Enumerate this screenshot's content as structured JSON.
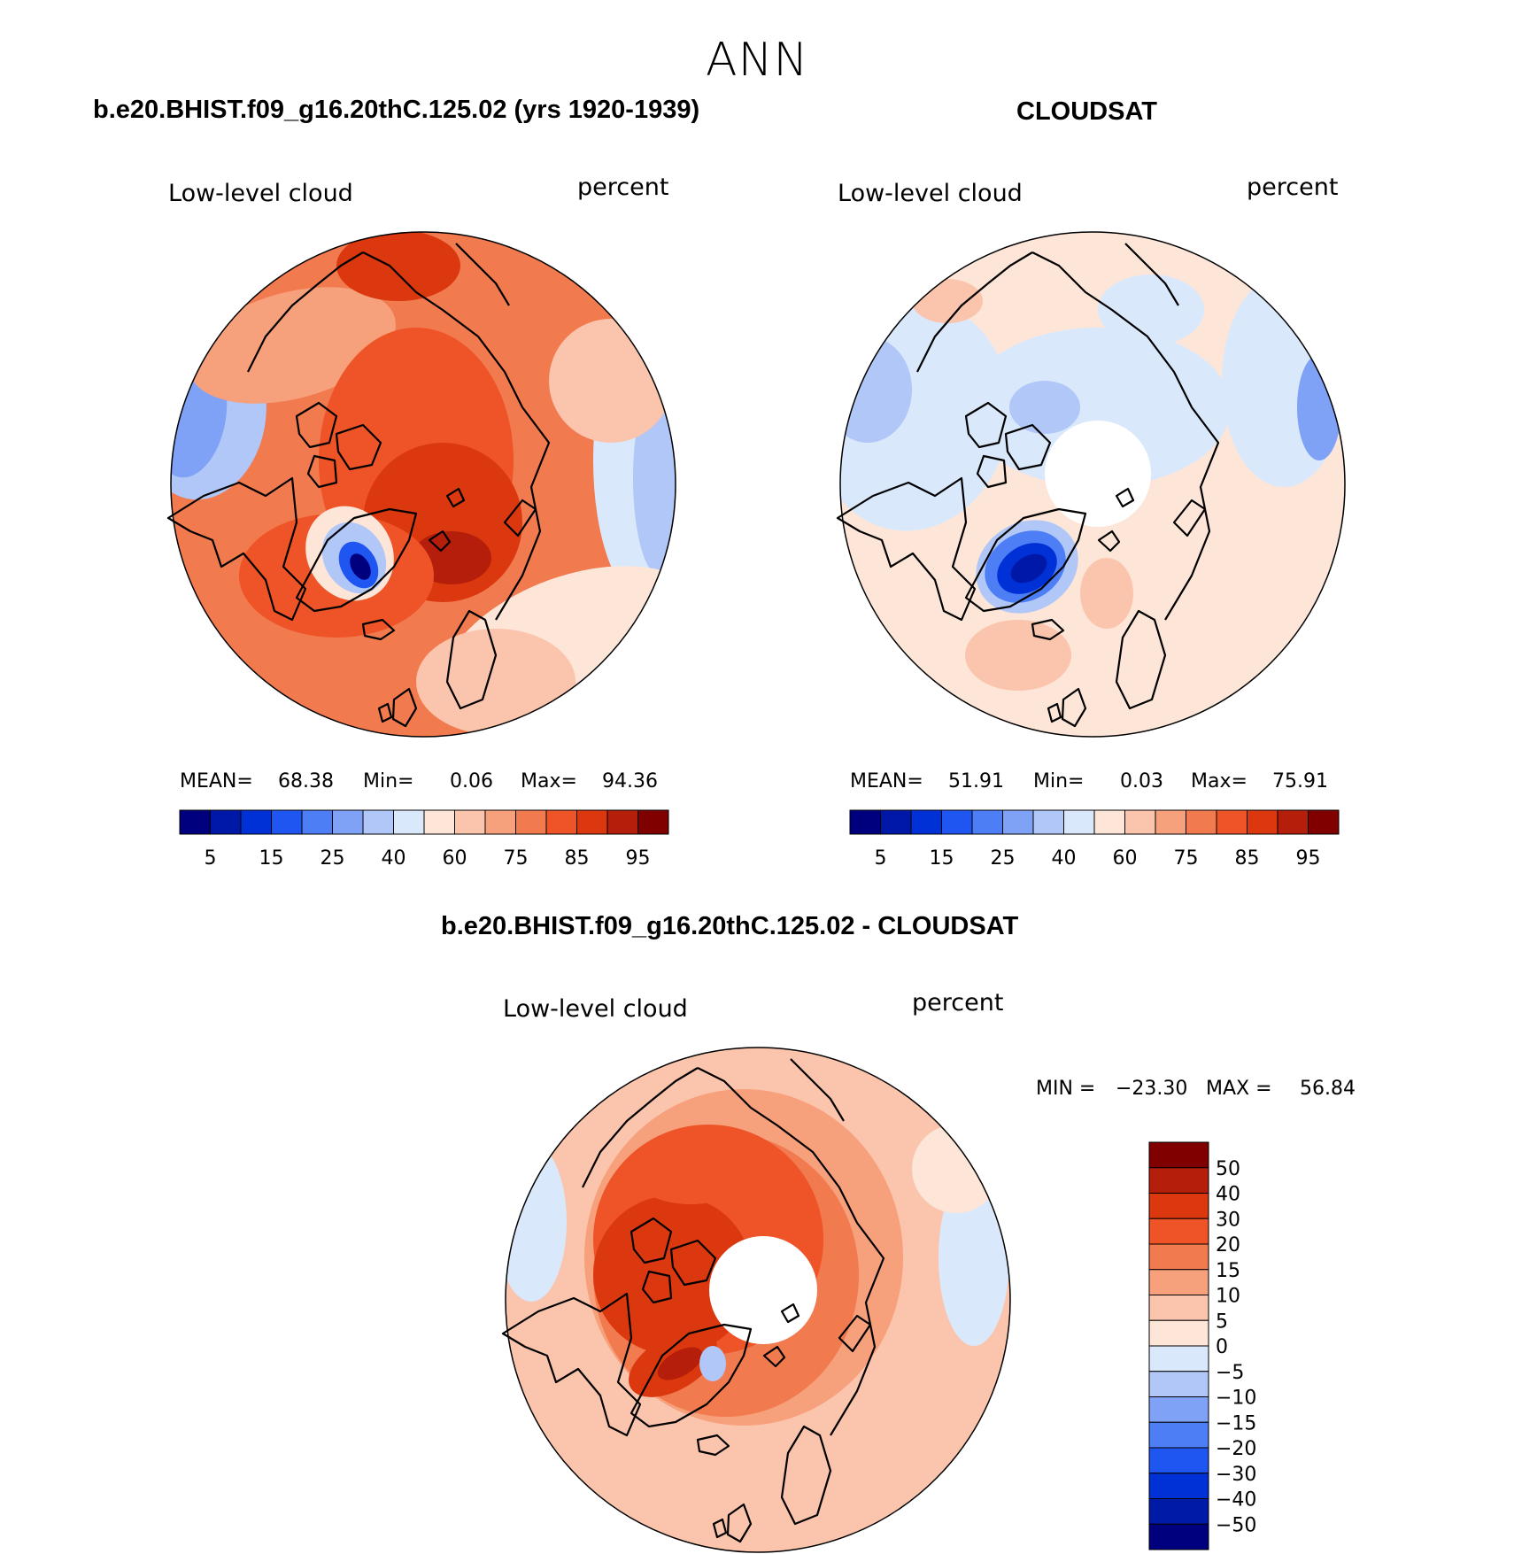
{
  "header": {
    "title": "ANN"
  },
  "colors": {
    "abs_scale": [
      "#00007f",
      "#0018a8",
      "#0031d6",
      "#1f55f0",
      "#4d7ef5",
      "#7fa2f7",
      "#b0c7f7",
      "#dae8fb",
      "#fde6d8",
      "#fbc4ac",
      "#f7a07c",
      "#f27a4f",
      "#ee5427",
      "#dc380f",
      "#b51e0a",
      "#800000"
    ],
    "diff_scale": [
      "#00007f",
      "#001aa8",
      "#0031d6",
      "#1f55f0",
      "#4d7ef5",
      "#7fa2f7",
      "#b0c7f7",
      "#dae8fb",
      "#fde6d8",
      "#fbc4ac",
      "#f7a07c",
      "#f27a4f",
      "#ee5427",
      "#dc380f",
      "#b51e0a",
      "#800000"
    ],
    "coast": "#000000"
  },
  "chart_data": [
    {
      "type": "heatmap",
      "projection": "north-polar-stereographic",
      "panel_title": "b.e20.BHIST.f09_g16.20thC.125.02 (yrs 1920-1939)",
      "variable": "Low-level cloud",
      "units": "percent",
      "stats": {
        "mean_label": "MEAN=",
        "mean": "68.38",
        "min_label": "Min=",
        "min": "0.06",
        "max_label": "Max=",
        "max": "94.36"
      },
      "colorbar": {
        "orientation": "horizontal",
        "tick_labels": [
          "5",
          "15",
          "25",
          "40",
          "60",
          "75",
          "85",
          "95"
        ]
      },
      "dominant_range": [
        60,
        95
      ],
      "minimum_region": "Greenland interior"
    },
    {
      "type": "heatmap",
      "projection": "north-polar-stereographic",
      "panel_title": "CLOUDSAT",
      "variable": "Low-level cloud",
      "units": "percent",
      "stats": {
        "mean_label": "MEAN=",
        "mean": "51.91",
        "min_label": "Min=",
        "min": "0.03",
        "max_label": "Max=",
        "max": "75.91"
      },
      "colorbar": {
        "orientation": "horizontal",
        "tick_labels": [
          "5",
          "15",
          "25",
          "40",
          "60",
          "75",
          "85",
          "95"
        ]
      },
      "dominant_range": [
        40,
        75
      ],
      "missing_region": "polar cap north of ~82N"
    },
    {
      "type": "heatmap",
      "projection": "north-polar-stereographic",
      "panel_title": "b.e20.BHIST.f09_g16.20thC.125.02 - CLOUDSAT",
      "variable": "Low-level cloud",
      "units": "percent",
      "stats": {
        "min_label": "MIN =",
        "min": "−23.30",
        "max_label": "MAX =",
        "max": "56.84"
      },
      "colorbar": {
        "orientation": "vertical",
        "tick_labels": [
          "50",
          "40",
          "30",
          "20",
          "15",
          "10",
          "5",
          "0",
          "−5",
          "−10",
          "−15",
          "−20",
          "−30",
          "−40",
          "−50"
        ]
      },
      "dominant_range": [
        5,
        40
      ],
      "missing_region": "polar cap north of ~82N"
    }
  ]
}
